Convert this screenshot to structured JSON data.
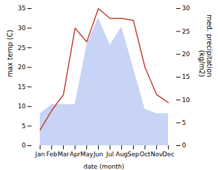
{
  "chart_data": {
    "type": "line",
    "categories": [
      "Jan",
      "Feb",
      "Mar",
      "Apr",
      "May",
      "Jun",
      "Jul",
      "Aug",
      "Sep",
      "Oct",
      "Nov",
      "Dec"
    ],
    "xlabel": "date (month)",
    "ylabel": "max temp (C)",
    "y2label": "med. precipitation\n(kg/m2)",
    "ylim": [
      0,
      35
    ],
    "yticks": [
      0,
      5,
      10,
      15,
      20,
      25,
      30,
      35
    ],
    "y2lim": [
      0,
      30
    ],
    "y2ticks": [
      0,
      5,
      10,
      15,
      20,
      25,
      30
    ],
    "grid": false,
    "series": [
      {
        "type": "area",
        "axis": "y2",
        "color": "#c8d4f5",
        "values": [
          7,
          9,
          9,
          9,
          22,
          28,
          22,
          26,
          17,
          8,
          7,
          7
        ]
      },
      {
        "type": "line",
        "color": "#c0392b",
        "values": [
          4,
          9,
          13,
          30,
          26.5,
          35,
          32.5,
          32.5,
          32,
          20,
          13,
          11
        ]
      }
    ]
  }
}
